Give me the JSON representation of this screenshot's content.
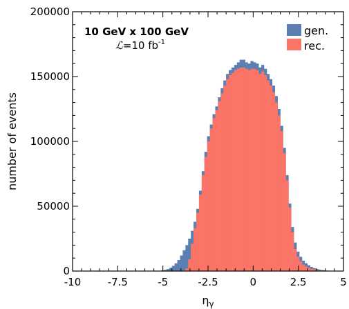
{
  "chart_data": {
    "type": "bar",
    "title": "",
    "xlabel": "η",
    "xlabel_sub": "γ",
    "ylabel": "number of events",
    "xlim": [
      -10,
      5
    ],
    "ylim": [
      0,
      200000
    ],
    "x_ticks": [
      "-10",
      "-7.5",
      "-5",
      "-2.5",
      "0",
      "2.5",
      "5"
    ],
    "x_tick_values": [
      -10,
      -7.5,
      -5,
      -2.5,
      0,
      2.5,
      5
    ],
    "y_ticks": [
      "0",
      "50000",
      "100000",
      "150000",
      "200000"
    ],
    "y_tick_values": [
      0,
      50000,
      100000,
      150000,
      200000
    ],
    "annotations": {
      "energy": "10  GeV  x  100  GeV",
      "lumi_symbol": "ℒ",
      "lumi_value": "=10 fb",
      "lumi_exp": "-1"
    },
    "legend_position": "top-right",
    "bin_width": 0.15,
    "x_bin_start": [
      -5.1,
      -4.95,
      -4.8,
      -4.65,
      -4.5,
      -4.35,
      -4.2,
      -4.05,
      -3.9,
      -3.75,
      -3.6,
      -3.45,
      -3.3,
      -3.15,
      -3.0,
      -2.85,
      -2.7,
      -2.55,
      -2.4,
      -2.25,
      -2.1,
      -1.95,
      -1.8,
      -1.65,
      -1.5,
      -1.35,
      -1.2,
      -1.05,
      -0.9,
      -0.75,
      -0.6,
      -0.45,
      -0.3,
      -0.15,
      0.0,
      0.15,
      0.3,
      0.45,
      0.6,
      0.75,
      0.9,
      1.05,
      1.2,
      1.35,
      1.5,
      1.65,
      1.8,
      1.95,
      2.1,
      2.25,
      2.4,
      2.55,
      2.7,
      2.85,
      3.0,
      3.15,
      3.3,
      3.45,
      3.6,
      3.75,
      3.9,
      4.05,
      4.2,
      4.35,
      4.5
    ],
    "series": [
      {
        "name": "gen.",
        "color": "#5b7fb1",
        "values": [
          500,
          900,
          1500,
          2500,
          4000,
          6000,
          8500,
          12000,
          16000,
          20000,
          25000,
          31000,
          38000,
          48000,
          62000,
          77000,
          92000,
          104000,
          113000,
          121000,
          127000,
          134000,
          141000,
          147000,
          152000,
          155000,
          157000,
          159000,
          161000,
          163000,
          163000,
          161000,
          160000,
          162000,
          161000,
          160000,
          157000,
          159000,
          156000,
          152000,
          148000,
          143000,
          135000,
          125000,
          112000,
          95000,
          74000,
          52000,
          34000,
          22000,
          15000,
          11000,
          8000,
          6000,
          4500,
          3200,
          2300,
          1600,
          1100,
          800,
          500,
          350,
          250,
          150,
          100
        ]
      },
      {
        "name": "rec.",
        "color": "#fa7468",
        "values": [
          0,
          0,
          0,
          0,
          0,
          0,
          0,
          0,
          500,
          2000,
          9000,
          21000,
          33000,
          45000,
          59000,
          74000,
          88000,
          100000,
          110000,
          118000,
          124000,
          131000,
          137000,
          143000,
          148000,
          151000,
          153000,
          155000,
          156000,
          157000,
          157000,
          156000,
          155000,
          156000,
          156000,
          155000,
          152000,
          154000,
          151000,
          147000,
          143000,
          138000,
          130000,
          120000,
          108000,
          91000,
          70000,
          49000,
          30000,
          17000,
          11000,
          7500,
          5000,
          3500,
          2500,
          1800,
          1200,
          800,
          500,
          300,
          200,
          100,
          50,
          20,
          0
        ]
      }
    ]
  }
}
